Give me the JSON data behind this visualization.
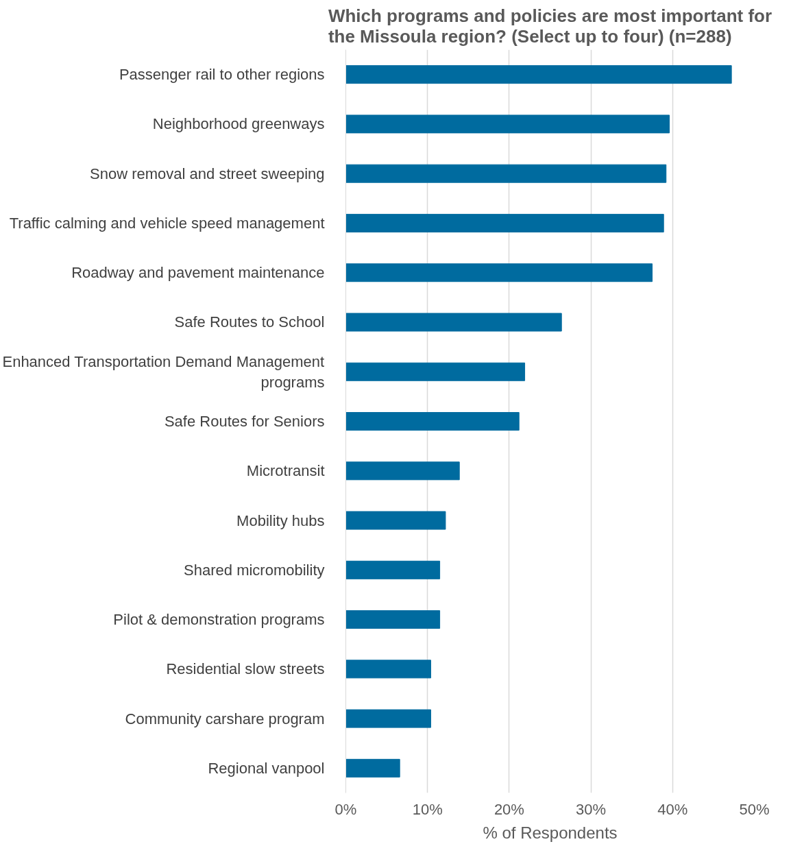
{
  "chart_data": {
    "type": "bar",
    "orientation": "horizontal",
    "title": "Which programs and policies are most important for the Missoula region? (Select up to four) (n=288)",
    "xlabel": "% of Respondents",
    "categories": [
      "Passenger rail to other regions",
      "Neighborhood greenways",
      "Snow removal and street sweeping",
      "Traffic calming and vehicle speed management",
      "Roadway and pavement maintenance",
      "Safe Routes to School",
      "Enhanced Transportation Demand Management programs",
      "Safe Routes for Seniors",
      "Microtransit",
      "Mobility hubs",
      "Shared micromobility",
      "Pilot & demonstration programs",
      "Residential slow streets",
      "Community carshare program",
      "Regional vanpool"
    ],
    "values": [
      47.2,
      39.6,
      39.2,
      38.9,
      37.5,
      26.4,
      21.9,
      21.2,
      13.9,
      12.2,
      11.5,
      11.5,
      10.4,
      10.4,
      6.6
    ],
    "color": "#006b9f",
    "xlim": [
      0,
      50
    ],
    "xticks": [
      {
        "value": 0,
        "label": "0%"
      },
      {
        "value": 10,
        "label": "10%"
      },
      {
        "value": 20,
        "label": "20%"
      },
      {
        "value": 30,
        "label": "30%"
      },
      {
        "value": 40,
        "label": "40%"
      },
      {
        "value": 50,
        "label": "50%"
      }
    ],
    "grid": "x"
  }
}
